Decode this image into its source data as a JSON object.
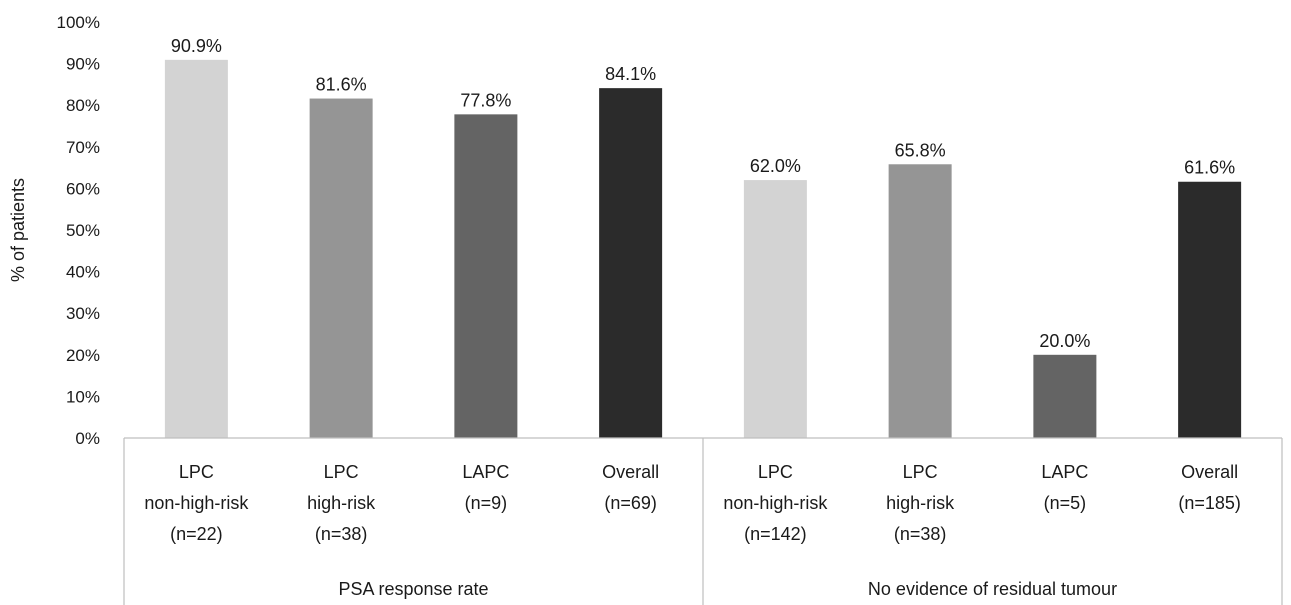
{
  "chart_data": {
    "type": "bar",
    "title": "",
    "ylabel": "% of patients",
    "xlabel": "",
    "ylim": [
      0,
      100
    ],
    "y_ticks": [
      "0%",
      "10%",
      "20%",
      "30%",
      "40%",
      "50%",
      "60%",
      "70%",
      "80%",
      "90%",
      "100%"
    ],
    "grid": false,
    "groups": [
      {
        "name": "PSA response rate",
        "bars": [
          {
            "lines": [
              "LPC",
              "non-high-risk",
              "(n=22)"
            ],
            "value": 90.9,
            "label": "90.9%",
            "color": "#d3d3d3"
          },
          {
            "lines": [
              "LPC",
              "high-risk",
              "(n=38)"
            ],
            "value": 81.6,
            "label": "81.6%",
            "color": "#959595"
          },
          {
            "lines": [
              "LAPC",
              "(n=9)"
            ],
            "value": 77.8,
            "label": "77.8%",
            "color": "#646464"
          },
          {
            "lines": [
              "Overall",
              "(n=69)"
            ],
            "value": 84.1,
            "label": "84.1%",
            "color": "#2b2b2b"
          }
        ]
      },
      {
        "name": "No evidence of residual tumour",
        "bars": [
          {
            "lines": [
              "LPC",
              "non-high-risk",
              "(n=142)"
            ],
            "value": 62.0,
            "label": "62.0%",
            "color": "#d3d3d3"
          },
          {
            "lines": [
              "LPC",
              "high-risk",
              "(n=38)"
            ],
            "value": 65.8,
            "label": "65.8%",
            "color": "#959595"
          },
          {
            "lines": [
              "LAPC",
              "(n=5)"
            ],
            "value": 20.0,
            "label": "20.0%",
            "color": "#646464"
          },
          {
            "lines": [
              "Overall",
              "(n=185)"
            ],
            "value": 61.6,
            "label": "61.6%",
            "color": "#2b2b2b"
          }
        ]
      }
    ]
  }
}
